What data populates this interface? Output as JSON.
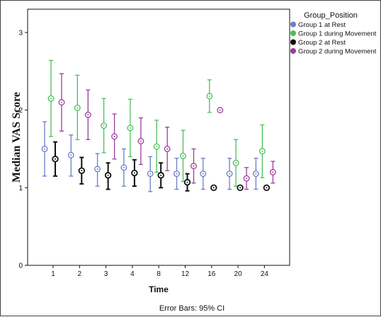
{
  "chart_data": {
    "type": "scatter",
    "error_bars": "95% CI",
    "xlabel": "Time",
    "ylabel": "Median VAS Score",
    "ylim": [
      0,
      3.3
    ],
    "yticks": [
      "0",
      "1",
      "2",
      "3"
    ],
    "categories": [
      "1",
      "2",
      "3",
      "4",
      "8",
      "12",
      "16",
      "20",
      "24"
    ],
    "footnote": "Error Bars: 95% CI",
    "legend": {
      "title": "Group_Position",
      "placement": "top-right"
    },
    "series": [
      {
        "name": "Group 1 at Rest",
        "color": "#6a7ec8",
        "points": [
          {
            "x": "1",
            "y": 1.5,
            "low": 1.15,
            "high": 1.85
          },
          {
            "x": "2",
            "y": 1.42,
            "low": 1.15,
            "high": 1.68
          },
          {
            "x": "3",
            "y": 1.24,
            "low": 1.02,
            "high": 1.44
          },
          {
            "x": "4",
            "y": 1.26,
            "low": 1.02,
            "high": 1.5
          },
          {
            "x": "8",
            "y": 1.18,
            "low": 0.95,
            "high": 1.4
          },
          {
            "x": "12",
            "y": 1.18,
            "low": 0.98,
            "high": 1.38
          },
          {
            "x": "16",
            "y": 1.18,
            "low": 0.98,
            "high": 1.38
          },
          {
            "x": "20",
            "y": 1.18,
            "low": 0.98,
            "high": 1.38
          },
          {
            "x": "24",
            "y": 1.18,
            "low": 0.98,
            "high": 1.38
          }
        ]
      },
      {
        "name": "Group 1 during Movement",
        "color": "#4bbf5a",
        "points": [
          {
            "x": "1",
            "y": 2.15,
            "low": 1.66,
            "high": 2.64
          },
          {
            "x": "2",
            "y": 2.03,
            "low": 1.62,
            "high": 2.45
          },
          {
            "x": "3",
            "y": 1.8,
            "low": 1.45,
            "high": 2.15
          },
          {
            "x": "4",
            "y": 1.77,
            "low": 1.4,
            "high": 2.14
          },
          {
            "x": "8",
            "y": 1.53,
            "low": 1.2,
            "high": 1.87
          },
          {
            "x": "12",
            "y": 1.41,
            "low": 1.08,
            "high": 1.74
          },
          {
            "x": "16",
            "y": 2.18,
            "low": 1.97,
            "high": 2.39
          },
          {
            "x": "20",
            "y": 1.32,
            "low": 1.02,
            "high": 1.62
          },
          {
            "x": "24",
            "y": 1.47,
            "low": 1.13,
            "high": 1.81
          }
        ]
      },
      {
        "name": "Group 2 at Rest",
        "color": "#111111",
        "points": [
          {
            "x": "1",
            "y": 1.37,
            "low": 1.15,
            "high": 1.59
          },
          {
            "x": "2",
            "y": 1.22,
            "low": 1.05,
            "high": 1.39
          },
          {
            "x": "3",
            "y": 1.16,
            "low": 0.98,
            "high": 1.32
          },
          {
            "x": "4",
            "y": 1.19,
            "low": 1.02,
            "high": 1.36
          },
          {
            "x": "8",
            "y": 1.16,
            "low": 1.0,
            "high": 1.32
          },
          {
            "x": "12",
            "y": 1.07,
            "low": 0.96,
            "high": 1.18
          },
          {
            "x": "16",
            "y": 1.0,
            "low": 1.0,
            "high": 1.0
          },
          {
            "x": "20",
            "y": 1.0,
            "low": 1.0,
            "high": 1.0
          },
          {
            "x": "24",
            "y": 1.0,
            "low": 1.0,
            "high": 1.0
          }
        ]
      },
      {
        "name": "Group 2 during Movement",
        "color": "#9b3d9b",
        "points": [
          {
            "x": "1",
            "y": 2.1,
            "low": 1.73,
            "high": 2.47
          },
          {
            "x": "2",
            "y": 1.94,
            "low": 1.62,
            "high": 2.26
          },
          {
            "x": "3",
            "y": 1.66,
            "low": 1.37,
            "high": 1.95
          },
          {
            "x": "4",
            "y": 1.6,
            "low": 1.3,
            "high": 1.9
          },
          {
            "x": "8",
            "y": 1.5,
            "low": 1.22,
            "high": 1.78
          },
          {
            "x": "12",
            "y": 1.28,
            "low": 1.06,
            "high": 1.5
          },
          {
            "x": "16",
            "y": 2.0,
            "low": 2.0,
            "high": 2.0
          },
          {
            "x": "20",
            "y": 1.12,
            "low": 0.98,
            "high": 1.26
          },
          {
            "x": "24",
            "y": 1.2,
            "low": 1.06,
            "high": 1.34
          }
        ]
      }
    ]
  }
}
